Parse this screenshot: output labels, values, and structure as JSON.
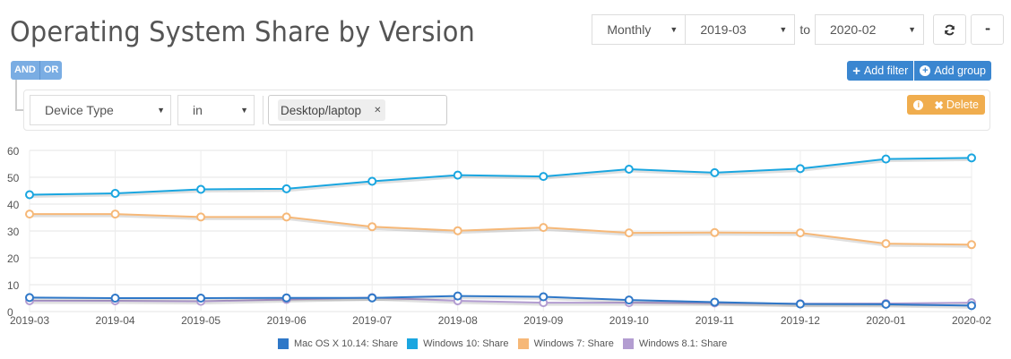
{
  "header": {
    "title": "Operating System Share by Version"
  },
  "toolbar": {
    "interval": "Monthly",
    "from": "2019-03",
    "to_label": "to",
    "to": "2020-02",
    "refresh_icon": "refresh-icon",
    "more_icon": "ellipsis-icon",
    "more_label": "•••"
  },
  "filters": {
    "conditions": [
      "AND",
      "OR"
    ],
    "add_filter_label": "Add filter",
    "add_group_label": "Add group",
    "rule": {
      "field": "Device Type",
      "operator": "in",
      "values": [
        "Desktop/laptop"
      ],
      "delete_label": "Delete"
    }
  },
  "chart_data": {
    "type": "line",
    "title": "Operating System Share by Version",
    "xlabel": "",
    "ylabel": "",
    "ylim": [
      0,
      60
    ],
    "yticks": [
      0,
      10,
      20,
      30,
      40,
      50,
      60
    ],
    "grid": true,
    "legend_position": "bottom",
    "x": [
      "2019-03",
      "2019-04",
      "2019-05",
      "2019-06",
      "2019-07",
      "2019-08",
      "2019-09",
      "2019-10",
      "2019-11",
      "2019-12",
      "2020-01",
      "2020-02"
    ],
    "series": [
      {
        "name": "Mac OS X 10.14: Share",
        "color": "#2f78c8",
        "values": [
          5.2,
          5.0,
          5.0,
          5.1,
          5.1,
          5.8,
          5.5,
          4.3,
          3.5,
          2.8,
          2.7,
          2.2
        ]
      },
      {
        "name": "Windows 10: Share",
        "color": "#1aa6e0",
        "values": [
          43.5,
          44.0,
          45.5,
          45.7,
          48.5,
          50.8,
          50.3,
          53.0,
          51.7,
          53.2,
          56.8,
          57.2
        ]
      },
      {
        "name": "Windows 7: Share",
        "color": "#f6b878",
        "values": [
          36.3,
          36.3,
          35.2,
          35.2,
          31.6,
          30.1,
          31.3,
          29.3,
          29.4,
          29.3,
          25.3,
          24.9
        ]
      },
      {
        "name": "Windows 8.1: Share",
        "color": "#b39dd1",
        "values": [
          4.0,
          4.0,
          3.8,
          4.5,
          5.2,
          4.0,
          3.3,
          3.3,
          3.2,
          2.9,
          3.0,
          3.3
        ]
      }
    ]
  }
}
